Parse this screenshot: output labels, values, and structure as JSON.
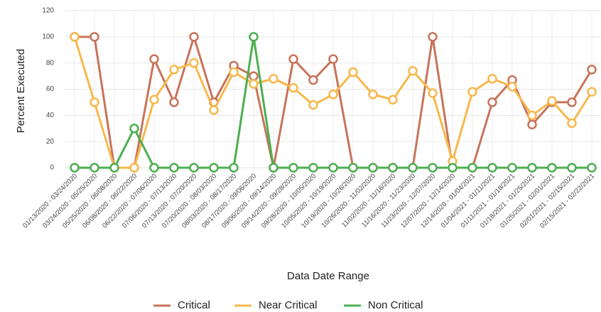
{
  "chart_data": {
    "type": "line",
    "x_label": "Data Date Range",
    "y_label": "Percent Executed",
    "categories": [
      "01/13/2020 - 03/24/2020",
      "03/24/2020 - 05/25/2020",
      "05/25/2020 - 06/08/2020",
      "06/08/2020 - 06/22/2020",
      "06/22/2020 - 07/06/2020",
      "07/06/2020 - 07/13/2020",
      "07/13/2020 - 07/20/2020",
      "07/20/2020 - 08/03/2020",
      "08/03/2020 - 08/17/2020",
      "08/17/2020 - 09/06/2020",
      "09/06/2020 - 09/14/2020",
      "09/14/2020 - 09/28/2020",
      "09/28/2020 - 10/05/2020",
      "10/05/2020 - 10/19/2020",
      "10/19/2020 - 10/26/2020",
      "10/26/2020 - 11/02/2020",
      "11/02/2020 - 11/16/2020",
      "11/16/2020 - 11/23/2020",
      "11/23/2020 - 12/07/2020",
      "12/07/2020 - 12/14/2020",
      "12/14/2020 - 01/04/2021",
      "01/04/2021 - 01/11/2021",
      "01/11/2021 - 01/18/2021",
      "01/18/2021 - 01/25/2021",
      "01/25/2021 - 02/01/2021",
      "02/01/2021 - 02/15/2021",
      "02/15/2021 - 02/22/2021"
    ],
    "series": [
      {
        "name": "Critical",
        "color": "#c8735a",
        "values": [
          100,
          100,
          0,
          0,
          83,
          50,
          100,
          50,
          78,
          70,
          0,
          83,
          67,
          83,
          0,
          0,
          0,
          0,
          100,
          0,
          0,
          50,
          67,
          33,
          50,
          50,
          75
        ]
      },
      {
        "name": "Near Critical",
        "color": "#f7b84b",
        "values": [
          100,
          50,
          0,
          0,
          52,
          75,
          80,
          44,
          73,
          64,
          68,
          61,
          48,
          56,
          73,
          56,
          52,
          74,
          57,
          5,
          58,
          68,
          62,
          40,
          51,
          34,
          58
        ]
      },
      {
        "name": "Non Critical",
        "color": "#4caf50",
        "values": [
          0,
          0,
          0,
          30,
          0,
          0,
          0,
          0,
          0,
          100,
          0,
          0,
          0,
          0,
          0,
          0,
          0,
          0,
          0,
          0,
          0,
          0,
          0,
          0,
          0,
          0,
          0
        ]
      }
    ],
    "ylim": [
      0,
      120
    ],
    "yticks": [
      0,
      20,
      40,
      60,
      80,
      100,
      120
    ],
    "grid": true
  }
}
